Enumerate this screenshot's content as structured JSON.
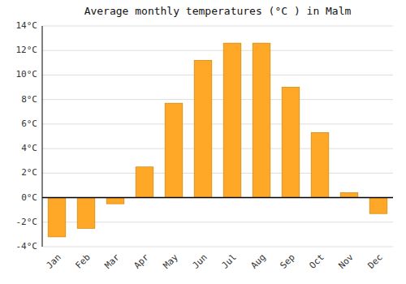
{
  "chart_data": {
    "type": "bar",
    "title": "Average monthly temperatures (°C ) in Malm",
    "categories": [
      "Jan",
      "Feb",
      "Mar",
      "Apr",
      "May",
      "Jun",
      "Jul",
      "Aug",
      "Sep",
      "Oct",
      "Nov",
      "Dec"
    ],
    "values": [
      -3.2,
      -2.5,
      -0.5,
      2.5,
      7.7,
      11.2,
      12.6,
      12.6,
      9.0,
      5.3,
      0.4,
      -1.3
    ],
    "color": "#FFA726",
    "ylim": [
      -4,
      14
    ],
    "yticks": [
      {
        "value": -4,
        "label": "-4°C"
      },
      {
        "value": -2,
        "label": "-2°C"
      },
      {
        "value": 0,
        "label": "0°C"
      },
      {
        "value": 2,
        "label": "2°C"
      },
      {
        "value": 4,
        "label": "4°C"
      },
      {
        "value": 6,
        "label": "6°C"
      },
      {
        "value": 8,
        "label": "8°C"
      },
      {
        "value": 10,
        "label": "10°C"
      },
      {
        "value": 12,
        "label": "12°C"
      },
      {
        "value": 14,
        "label": "14°C"
      }
    ],
    "grid": true
  }
}
